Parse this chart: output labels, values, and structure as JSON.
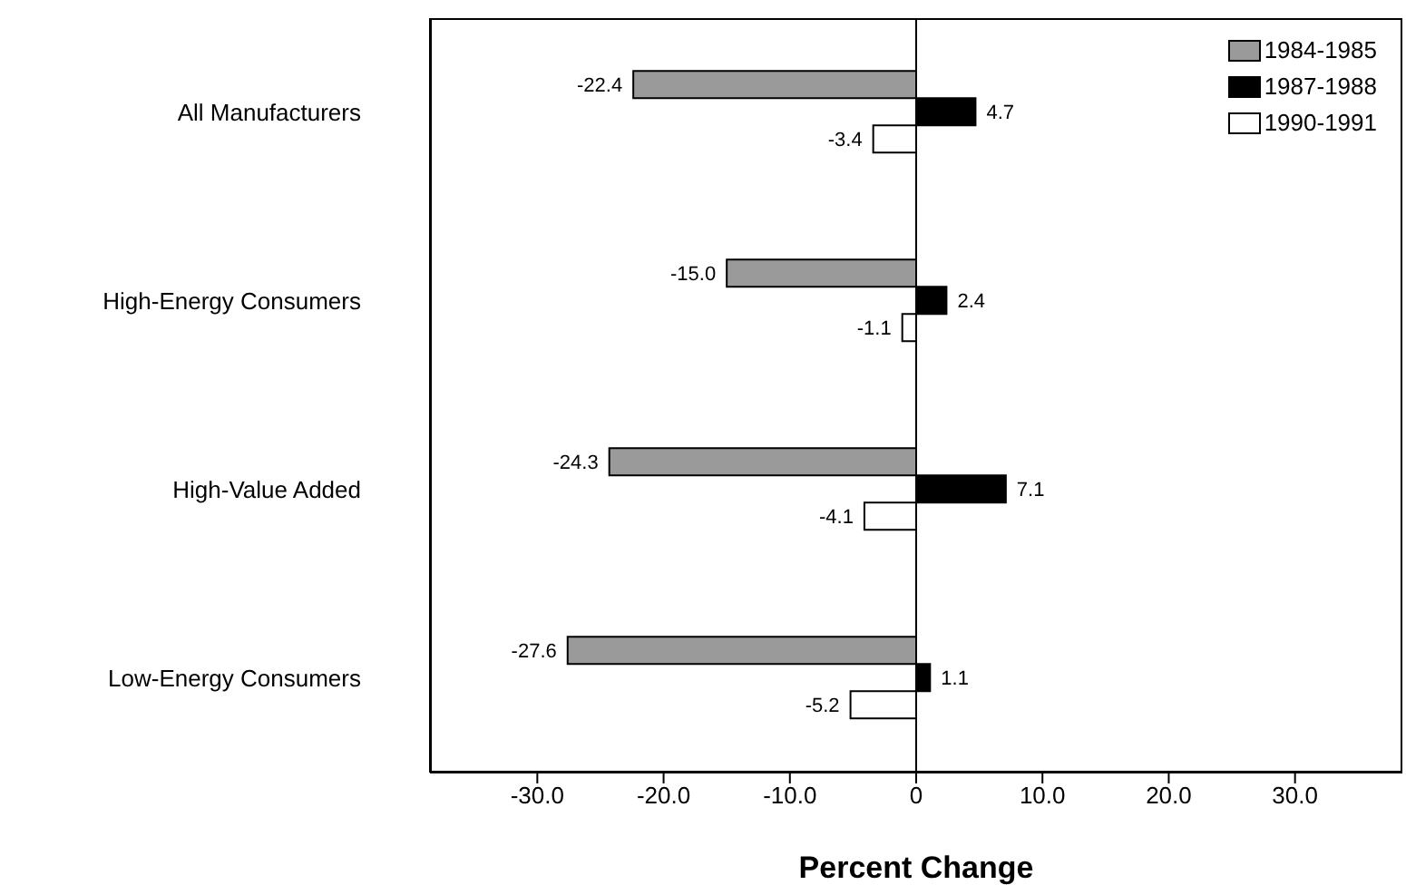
{
  "chart_data": {
    "type": "bar",
    "orientation": "horizontal",
    "xlabel": "Percent Change",
    "categories": [
      "All Manufacturers",
      "High-Energy Consumers",
      "High-Value Added",
      "Low-Energy Consumers"
    ],
    "series": [
      {
        "name": "1984-1985",
        "color": "#9a9a9a",
        "values": [
          -22.4,
          -15.0,
          -24.3,
          -27.6
        ],
        "value_labels": [
          "-22.4",
          "-15.0",
          "-24.3",
          "-27.6"
        ]
      },
      {
        "name": "1987-1988",
        "color": "#000000",
        "values": [
          4.7,
          2.4,
          7.1,
          1.1
        ],
        "value_labels": [
          "4.7",
          "2.4",
          "7.1",
          "1.1"
        ]
      },
      {
        "name": "1990-1991",
        "color": "#ffffff",
        "values": [
          -3.4,
          -1.1,
          -4.1,
          -5.2
        ],
        "value_labels": [
          "-3.4",
          "-1.1",
          "-4.1",
          "-5.2"
        ]
      }
    ],
    "xlim": [
      -38.5,
      38.5
    ],
    "xticks": [
      {
        "value": -30,
        "label": "-30.0"
      },
      {
        "value": -20,
        "label": "-20.0"
      },
      {
        "value": -10,
        "label": "-10.0"
      },
      {
        "value": 0,
        "label": "0"
      },
      {
        "value": 10,
        "label": "10.0"
      },
      {
        "value": 20,
        "label": "20.0"
      },
      {
        "value": 30,
        "label": "30.0"
      }
    ],
    "ref_lines": [
      {
        "axis": "x",
        "value": 0,
        "color": "#000000"
      }
    ],
    "legend": "top right",
    "grid": false
  }
}
